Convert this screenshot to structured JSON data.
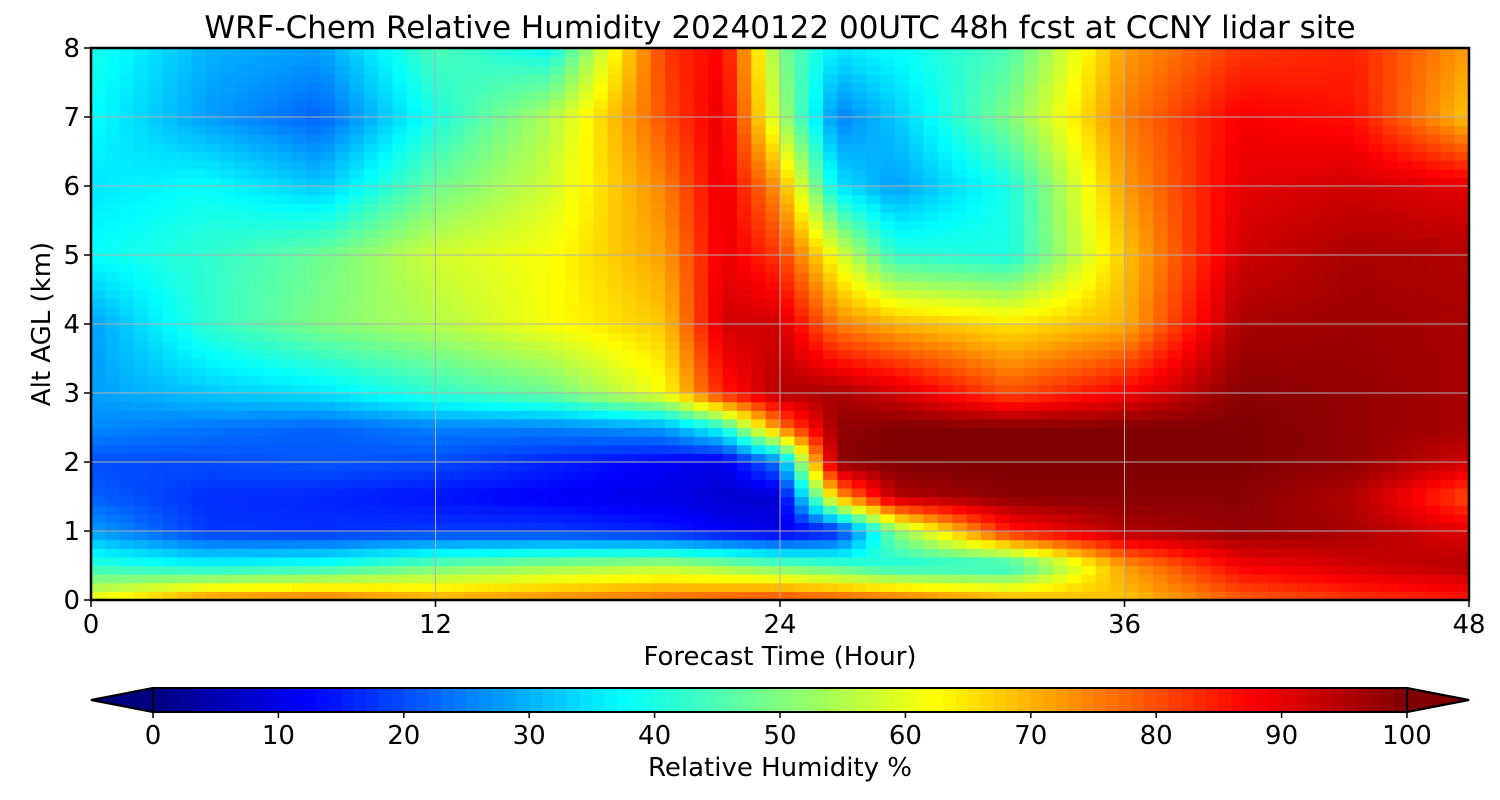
{
  "chart_data": {
    "type": "heatmap",
    "title": "WRF-Chem Relative Humidity 20240122 00UTC 48h fcst at CCNY lidar site",
    "xlabel": "Forecast Time (Hour)",
    "ylabel": "Alt AGL (km)",
    "xlim": [
      0,
      48
    ],
    "ylim": [
      0,
      8
    ],
    "xticks": [
      0,
      12,
      24,
      36,
      48
    ],
    "yticks": [
      0,
      1,
      2,
      3,
      4,
      5,
      6,
      7,
      8
    ],
    "grid": true,
    "x": [
      0,
      4,
      8,
      12,
      16,
      20,
      22,
      24,
      26,
      28,
      32,
      36,
      40,
      44,
      48
    ],
    "y": [
      0,
      0.5,
      1,
      1.5,
      2,
      2.5,
      3,
      4,
      5,
      6,
      7,
      8
    ],
    "z": [
      [
        62,
        75,
        78,
        72,
        75,
        78,
        80,
        82,
        80,
        78,
        72,
        68,
        78,
        82,
        85
      ],
      [
        42,
        38,
        40,
        48,
        52,
        55,
        52,
        48,
        45,
        40,
        40,
        72,
        88,
        92,
        95
      ],
      [
        28,
        18,
        17,
        18,
        18,
        15,
        12,
        10,
        15,
        50,
        85,
        95,
        98,
        96,
        90
      ],
      [
        22,
        17,
        16,
        14,
        12,
        10,
        8,
        8,
        70,
        95,
        99,
        99,
        99,
        95,
        80
      ],
      [
        20,
        20,
        21,
        20,
        16,
        12,
        10,
        25,
        99,
        100,
        100,
        100,
        100,
        98,
        92
      ],
      [
        26,
        24,
        22,
        25,
        25,
        28,
        40,
        75,
        98,
        100,
        100,
        100,
        100,
        98,
        96
      ],
      [
        28,
        32,
        35,
        42,
        48,
        62,
        85,
        95,
        96,
        92,
        80,
        88,
        99,
        98,
        96
      ],
      [
        28,
        42,
        50,
        55,
        62,
        68,
        92,
        92,
        75,
        70,
        65,
        70,
        96,
        97,
        96
      ],
      [
        38,
        42,
        48,
        58,
        62,
        72,
        90,
        82,
        60,
        42,
        40,
        68,
        92,
        96,
        95
      ],
      [
        35,
        38,
        32,
        48,
        58,
        75,
        90,
        72,
        35,
        28,
        40,
        72,
        90,
        92,
        90
      ],
      [
        38,
        28,
        22,
        40,
        55,
        80,
        90,
        55,
        25,
        32,
        50,
        75,
        88,
        86,
        68
      ],
      [
        40,
        30,
        28,
        45,
        38,
        82,
        88,
        50,
        35,
        38,
        45,
        72,
        82,
        84,
        72
      ]
    ],
    "colorbar": {
      "label": "Relative Humidity %",
      "ticks": [
        0,
        10,
        20,
        30,
        40,
        50,
        60,
        70,
        80,
        90,
        100
      ],
      "min": 0,
      "max": 100,
      "extend": "both",
      "colormap": "jet"
    }
  }
}
